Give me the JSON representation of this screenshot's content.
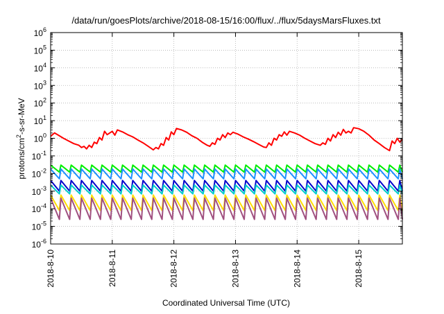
{
  "chart_data": {
    "type": "line",
    "title": "/data/run/goesPlots/archive/2018-08-15/16:00/flux/../flux/5daysMarsFluxes.txt",
    "xlabel": "Coordinated Universal Time (UTC)",
    "ylabel_parts": {
      "base": "protons/cm",
      "sup": "2",
      "rest": "-s-sr-MeV"
    },
    "yscale": "log",
    "ylim_exp": [
      -6,
      6
    ],
    "y_tick_labels": [
      {
        "exp": -6,
        "base": "10",
        "sup": "-6"
      },
      {
        "exp": -5,
        "base": "10",
        "sup": "-5"
      },
      {
        "exp": -4,
        "base": "10",
        "sup": "-4"
      },
      {
        "exp": -3,
        "base": "10",
        "sup": "-3"
      },
      {
        "exp": -2,
        "base": "10",
        "sup": "-2"
      },
      {
        "exp": -1,
        "base": "10",
        "sup": "-1"
      },
      {
        "exp": 0,
        "base": "10",
        "sup": "0"
      },
      {
        "exp": 1,
        "base": "10",
        "sup": "1"
      },
      {
        "exp": 2,
        "base": "10",
        "sup": "2"
      },
      {
        "exp": 3,
        "base": "10",
        "sup": "3"
      },
      {
        "exp": 4,
        "base": "10",
        "sup": "4"
      },
      {
        "exp": 5,
        "base": "10",
        "sup": "5"
      },
      {
        "exp": 6,
        "base": "10",
        "sup": "6"
      }
    ],
    "xlim": [
      "2018-08-10",
      "2018-08-15T17:00"
    ],
    "x_ticks": [
      "2018-8-10",
      "2018-8-11",
      "2018-8-12",
      "2018-8-13",
      "2018-8-14",
      "2018-8-15"
    ],
    "grid": true,
    "series": [
      {
        "color": "#ff0000",
        "values": [
          [
            "2018-08-10T00:00",
            1.3
          ],
          [
            "2018-08-10T01:30",
            2.0
          ],
          [
            "2018-08-10T03:00",
            1.5
          ],
          [
            "2018-08-10T05:00",
            1.0
          ],
          [
            "2018-08-10T07:00",
            0.7
          ],
          [
            "2018-08-10T09:00",
            0.5
          ],
          [
            "2018-08-10T11:00",
            0.4
          ],
          [
            "2018-08-10T12:00",
            0.3
          ],
          [
            "2018-08-10T13:00",
            0.35
          ],
          [
            "2018-08-10T14:00",
            0.25
          ],
          [
            "2018-08-10T15:00",
            0.4
          ],
          [
            "2018-08-10T16:00",
            0.3
          ],
          [
            "2018-08-10T17:00",
            0.6
          ],
          [
            "2018-08-10T18:00",
            0.5
          ],
          [
            "2018-08-10T19:00",
            1.1
          ],
          [
            "2018-08-10T20:00",
            0.8
          ],
          [
            "2018-08-10T21:00",
            2.5
          ],
          [
            "2018-08-10T22:00",
            1.6
          ],
          [
            "2018-08-11T00:00",
            2.5
          ],
          [
            "2018-08-11T01:00",
            1.5
          ],
          [
            "2018-08-11T02:00",
            3.0
          ],
          [
            "2018-08-11T04:00",
            2.3
          ],
          [
            "2018-08-11T06:00",
            1.6
          ],
          [
            "2018-08-11T08:00",
            1.2
          ],
          [
            "2018-08-11T10:00",
            0.8
          ],
          [
            "2018-08-11T12:00",
            0.55
          ],
          [
            "2018-08-11T14:00",
            0.35
          ],
          [
            "2018-08-11T16:00",
            0.22
          ],
          [
            "2018-08-11T17:00",
            0.3
          ],
          [
            "2018-08-11T18:00",
            0.25
          ],
          [
            "2018-08-11T19:00",
            0.5
          ],
          [
            "2018-08-11T20:00",
            0.4
          ],
          [
            "2018-08-11T21:00",
            1.1
          ],
          [
            "2018-08-11T22:00",
            0.8
          ],
          [
            "2018-08-11T23:00",
            2.3
          ],
          [
            "2018-08-12T00:00",
            1.6
          ],
          [
            "2018-08-12T01:00",
            3.6
          ],
          [
            "2018-08-12T03:00",
            3.0
          ],
          [
            "2018-08-12T05:00",
            2.2
          ],
          [
            "2018-08-12T07:00",
            1.4
          ],
          [
            "2018-08-12T09:00",
            1.0
          ],
          [
            "2018-08-12T11:00",
            0.6
          ],
          [
            "2018-08-12T13:00",
            0.4
          ],
          [
            "2018-08-12T14:00",
            0.35
          ],
          [
            "2018-08-12T15:00",
            0.55
          ],
          [
            "2018-08-12T16:00",
            0.45
          ],
          [
            "2018-08-12T17:00",
            1.0
          ],
          [
            "2018-08-12T18:00",
            0.8
          ],
          [
            "2018-08-12T19:00",
            1.6
          ],
          [
            "2018-08-12T20:00",
            1.1
          ],
          [
            "2018-08-12T21:00",
            2.0
          ],
          [
            "2018-08-12T22:00",
            1.6
          ],
          [
            "2018-08-12T23:00",
            2.2
          ],
          [
            "2018-08-13T01:00",
            1.7
          ],
          [
            "2018-08-13T03:00",
            1.2
          ],
          [
            "2018-08-13T05:00",
            0.9
          ],
          [
            "2018-08-13T07:00",
            0.65
          ],
          [
            "2018-08-13T09:00",
            0.45
          ],
          [
            "2018-08-13T11:00",
            0.32
          ],
          [
            "2018-08-13T12:00",
            0.3
          ],
          [
            "2018-08-13T13:00",
            0.55
          ],
          [
            "2018-08-13T14:00",
            0.4
          ],
          [
            "2018-08-13T15:00",
            1.0
          ],
          [
            "2018-08-13T16:00",
            0.8
          ],
          [
            "2018-08-13T17:00",
            1.6
          ],
          [
            "2018-08-13T18:00",
            1.3
          ],
          [
            "2018-08-13T19:00",
            2.3
          ],
          [
            "2018-08-13T20:00",
            1.5
          ],
          [
            "2018-08-13T21:00",
            2.5
          ],
          [
            "2018-08-13T23:00",
            2.0
          ],
          [
            "2018-08-14T01:00",
            1.5
          ],
          [
            "2018-08-14T03:00",
            1.0
          ],
          [
            "2018-08-14T05:00",
            0.7
          ],
          [
            "2018-08-14T07:00",
            0.5
          ],
          [
            "2018-08-14T09:00",
            0.4
          ],
          [
            "2018-08-14T10:00",
            0.55
          ],
          [
            "2018-08-14T11:00",
            0.45
          ],
          [
            "2018-08-14T12:00",
            1.0
          ],
          [
            "2018-08-14T13:00",
            0.7
          ],
          [
            "2018-08-14T14:00",
            1.6
          ],
          [
            "2018-08-14T15:00",
            1.1
          ],
          [
            "2018-08-14T16:00",
            2.2
          ],
          [
            "2018-08-14T17:00",
            1.5
          ],
          [
            "2018-08-14T18:00",
            3.2
          ],
          [
            "2018-08-14T19:00",
            2.0
          ],
          [
            "2018-08-14T20:00",
            2.5
          ],
          [
            "2018-08-14T21:00",
            2.0
          ],
          [
            "2018-08-14T22:00",
            4.0
          ],
          [
            "2018-08-15T00:00",
            3.5
          ],
          [
            "2018-08-15T02:00",
            2.5
          ],
          [
            "2018-08-15T04:00",
            1.5
          ],
          [
            "2018-08-15T06:00",
            0.8
          ],
          [
            "2018-08-15T08:00",
            0.5
          ],
          [
            "2018-08-15T10:00",
            0.3
          ],
          [
            "2018-08-15T12:00",
            0.2
          ],
          [
            "2018-08-15T13:00",
            0.7
          ],
          [
            "2018-08-15T14:00",
            0.5
          ],
          [
            "2018-08-15T15:00",
            1.0
          ],
          [
            "2018-08-15T16:00",
            0.6
          ],
          [
            "2018-08-15T17:00",
            0.9
          ]
        ]
      },
      {
        "color": "#00ee00",
        "sawtooth": {
          "period_h": 4,
          "hi": 0.03,
          "lo": 0.012
        }
      },
      {
        "color": "#1e90ff",
        "sawtooth": {
          "period_h": 4,
          "hi": 0.018,
          "lo": 0.005
        }
      },
      {
        "color": "#0000cc",
        "sawtooth": {
          "period_h": 4,
          "hi": 0.004,
          "lo": 0.001
        }
      },
      {
        "color": "#00cccc",
        "sawtooth": {
          "period_h": 4,
          "hi": 0.0022,
          "lo": 0.0007
        }
      },
      {
        "color": "#ffdd00",
        "sawtooth": {
          "period_h": 4,
          "hi": 0.0006,
          "lo": 8e-05
        }
      },
      {
        "color": "#a05080",
        "sawtooth": {
          "period_h": 4,
          "hi": 0.0004,
          "lo": 2.5e-05
        }
      }
    ]
  }
}
